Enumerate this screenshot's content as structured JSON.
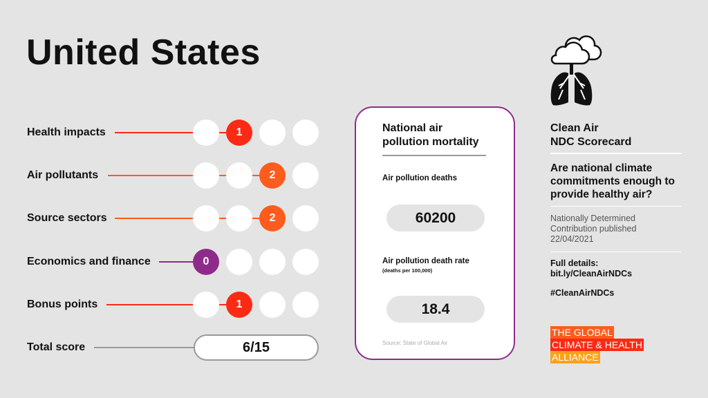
{
  "title": "United States",
  "categories": [
    {
      "label": "Health impacts",
      "score": "1",
      "color": "#fb2a14"
    },
    {
      "label": "Air pollutants",
      "score": "2",
      "color": "#fd5c1c"
    },
    {
      "label": "Source sectors",
      "score": "2",
      "color": "#fd5c1c"
    },
    {
      "label": "Economics and finance",
      "score": "0",
      "color": "#8e2b8a"
    },
    {
      "label": "Bonus points",
      "score": "1",
      "color": "#fb2a14"
    }
  ],
  "total": {
    "label": "Total score",
    "value": "6/15"
  },
  "card": {
    "title": "National air pollution mortality",
    "deaths_label": "Air pollution deaths",
    "deaths_value": "60200",
    "rate_label": "Air pollution death rate",
    "rate_unit": "(deaths per 100,000)",
    "rate_value": "18.4",
    "source": "Source: State of Global Air"
  },
  "side": {
    "heading1": "Clean Air",
    "heading2": "NDC Scorecard",
    "question": "Are national climate commitments enough to provide healthy air?",
    "published1": "Nationally Determined",
    "published2": "Contribution published",
    "published_date": "22/04/2021",
    "details_label": "Full details:",
    "details_link": "bit.ly/CleanAirNDCs",
    "hashtag": "#CleanAirNDCs",
    "icon": "cloud-lungs-icon"
  },
  "logo": {
    "line1": "THE GLOBAL",
    "line2": "CLIMATE & HEALTH",
    "line3": "ALLIANCE",
    "colors": [
      "#fd5c1c",
      "#fb2a14",
      "#fca118"
    ]
  }
}
